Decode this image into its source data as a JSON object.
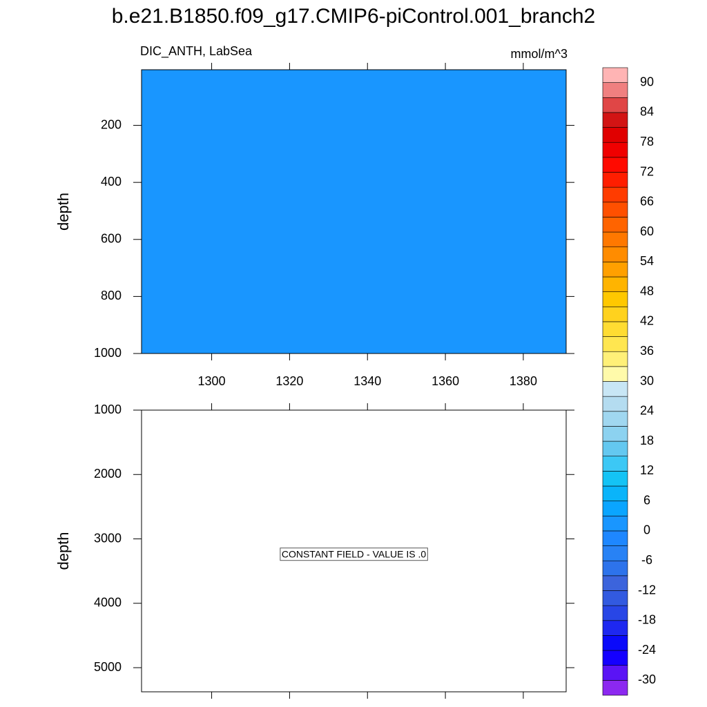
{
  "title": "b.e21.B1850.f09_g17.CMIP6-piControl.001_branch2",
  "chart_data": [
    {
      "type": "contour",
      "subtitle": "DIC_ANTH, LabSea",
      "units": "mmol/m^3",
      "ylabel": "depth",
      "value": 0,
      "xlim": [
        1282,
        1391
      ],
      "xticks": [
        1300,
        1320,
        1340,
        1360,
        1380
      ],
      "xticklabels": true,
      "ylim": [
        5,
        1000
      ],
      "yticks": [
        200,
        400,
        600,
        800,
        1000
      ],
      "yreverse": true
    },
    {
      "type": "contour",
      "ylabel": "depth",
      "annotation": "CONSTANT FIELD - VALUE IS .0",
      "xlim": [
        1282,
        1391
      ],
      "xticks": [
        1300,
        1320,
        1340,
        1360,
        1380
      ],
      "xticklabels": false,
      "ylim": [
        1000,
        5375
      ],
      "yticks": [
        1000,
        2000,
        3000,
        4000,
        5000
      ],
      "yreverse": true
    }
  ],
  "colorbar": {
    "levels": [
      -30,
      -27,
      -24,
      -21,
      -18,
      -15,
      -12,
      -9,
      -6,
      -3,
      0,
      3,
      6,
      9,
      12,
      15,
      18,
      21,
      24,
      27,
      30,
      33,
      36,
      39,
      42,
      45,
      48,
      51,
      54,
      57,
      60,
      63,
      66,
      69,
      72,
      75,
      78,
      81,
      84,
      87,
      90
    ],
    "colors": [
      "#8c28f0",
      "#5a14f5",
      "#1400ff",
      "#0a0afa",
      "#1e28f0",
      "#2846e6",
      "#325ae0",
      "#3c64dc",
      "#2d73eb",
      "#2882f5",
      "#1e87ff",
      "#1996ff",
      "#0aa5ff",
      "#0ab4fa",
      "#14c3f5",
      "#3cc8f5",
      "#64c8f0",
      "#8cd2f0",
      "#a0d7f0",
      "#b4dcf0",
      "#c8e6f5",
      "#fffaaa",
      "#fff078",
      "#ffe650",
      "#ffdc32",
      "#ffd21e",
      "#ffc800",
      "#ffb400",
      "#ffa000",
      "#ff8c00",
      "#ff7800",
      "#ff6400",
      "#ff5000",
      "#ff3c00",
      "#ff1e00",
      "#ff0a00",
      "#f00000",
      "#e00000",
      "#d21414",
      "#e04646",
      "#f08080",
      "#ffb4b4"
    ],
    "ticks": [
      -30,
      -24,
      -18,
      -12,
      -6,
      0,
      6,
      12,
      18,
      24,
      30,
      36,
      42,
      48,
      54,
      60,
      66,
      72,
      78,
      84,
      90
    ]
  }
}
